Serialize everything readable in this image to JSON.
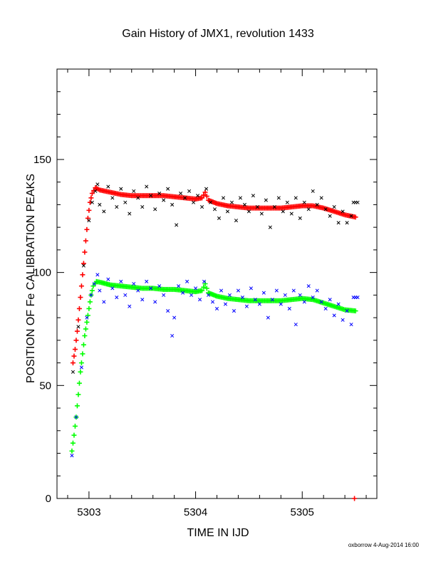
{
  "chart_data": {
    "type": "scatter",
    "title": "Gain History of JMX1, revolution 1433",
    "xlabel": "TIME IN IJD",
    "ylabel": "POSITION OF Fe CALIBRATION PEAKS",
    "footer": "oxborrow 4-Aug-2014 16:00",
    "xlim": [
      5302.7,
      5305.7
    ],
    "ylim": [
      0,
      190
    ],
    "x_ticks": [
      5303,
      5304,
      5305
    ],
    "x_tick_labels": [
      "5303",
      "5304",
      "5305"
    ],
    "y_ticks": [
      0,
      50,
      100,
      150
    ],
    "y_tick_labels": [
      "0",
      "50",
      "100",
      "150"
    ],
    "grid": false,
    "legend": "none",
    "series": [
      {
        "color": "#ff0000",
        "marker": "+",
        "points": [
          [
            5302.85,
            60
          ],
          [
            5302.87,
            66
          ],
          [
            5302.89,
            74
          ],
          [
            5302.91,
            84
          ],
          [
            5302.93,
            94
          ],
          [
            5302.95,
            104
          ],
          [
            5302.97,
            114
          ],
          [
            5302.99,
            124
          ],
          [
            5303.01,
            131
          ],
          [
            5303.03,
            135
          ],
          [
            5303.06,
            137.5
          ],
          [
            5303.1,
            136.5
          ],
          [
            5303.2,
            135.5
          ],
          [
            5303.3,
            134.5
          ],
          [
            5303.4,
            134
          ],
          [
            5303.5,
            134
          ],
          [
            5303.6,
            134
          ],
          [
            5303.7,
            134
          ],
          [
            5303.8,
            133.5
          ],
          [
            5303.9,
            133
          ],
          [
            5304.0,
            132.5
          ],
          [
            5304.06,
            133
          ],
          [
            5304.09,
            135.5
          ],
          [
            5304.12,
            132
          ],
          [
            5304.2,
            130.5
          ],
          [
            5304.3,
            129.5
          ],
          [
            5304.4,
            129
          ],
          [
            5304.5,
            128.5
          ],
          [
            5304.6,
            128.5
          ],
          [
            5304.7,
            128.5
          ],
          [
            5304.8,
            128.5
          ],
          [
            5304.9,
            129
          ],
          [
            5305.0,
            129.5
          ],
          [
            5305.1,
            129.5
          ],
          [
            5305.2,
            128.5
          ],
          [
            5305.3,
            127
          ],
          [
            5305.4,
            125.5
          ],
          [
            5305.5,
            124.5
          ]
        ]
      },
      {
        "color": "#00ff00",
        "marker": "+",
        "points": [
          [
            5302.84,
            21
          ],
          [
            5302.86,
            28
          ],
          [
            5302.88,
            36
          ],
          [
            5302.9,
            46
          ],
          [
            5302.92,
            56
          ],
          [
            5302.94,
            64
          ],
          [
            5302.96,
            72
          ],
          [
            5302.98,
            78
          ],
          [
            5303.0,
            84
          ],
          [
            5303.02,
            90
          ],
          [
            5303.04,
            94
          ],
          [
            5303.07,
            96
          ],
          [
            5303.12,
            95.5
          ],
          [
            5303.2,
            94.5
          ],
          [
            5303.3,
            94
          ],
          [
            5303.4,
            93.5
          ],
          [
            5303.5,
            93
          ],
          [
            5303.6,
            93
          ],
          [
            5303.7,
            92.5
          ],
          [
            5303.8,
            92.5
          ],
          [
            5303.9,
            92
          ],
          [
            5304.0,
            91.5
          ],
          [
            5304.06,
            92
          ],
          [
            5304.09,
            95
          ],
          [
            5304.12,
            91
          ],
          [
            5304.2,
            89.5
          ],
          [
            5304.3,
            88.5
          ],
          [
            5304.4,
            88
          ],
          [
            5304.5,
            87.5
          ],
          [
            5304.6,
            87.5
          ],
          [
            5304.7,
            87.5
          ],
          [
            5304.8,
            87.5
          ],
          [
            5304.9,
            88
          ],
          [
            5305.0,
            88.5
          ],
          [
            5305.1,
            88
          ],
          [
            5305.2,
            86.5
          ],
          [
            5305.3,
            85
          ],
          [
            5305.4,
            83.5
          ],
          [
            5305.5,
            83
          ]
        ]
      },
      {
        "color": "#000000",
        "marker": "x",
        "points": [
          [
            5302.85,
            56
          ],
          [
            5302.9,
            76
          ],
          [
            5302.95,
            103
          ],
          [
            5303.0,
            123
          ],
          [
            5303.03,
            131
          ],
          [
            5303.06,
            136
          ],
          [
            5303.08,
            139
          ],
          [
            5303.1,
            130
          ],
          [
            5303.14,
            127
          ],
          [
            5303.18,
            138
          ],
          [
            5303.22,
            133
          ],
          [
            5303.26,
            129
          ],
          [
            5303.3,
            137
          ],
          [
            5303.34,
            131
          ],
          [
            5303.38,
            126
          ],
          [
            5303.42,
            136
          ],
          [
            5303.46,
            133
          ],
          [
            5303.5,
            129
          ],
          [
            5303.54,
            138
          ],
          [
            5303.58,
            134
          ],
          [
            5303.62,
            128
          ],
          [
            5303.66,
            135
          ],
          [
            5303.7,
            132
          ],
          [
            5303.74,
            137
          ],
          [
            5303.78,
            130
          ],
          [
            5303.82,
            121
          ],
          [
            5303.86,
            135
          ],
          [
            5303.9,
            133
          ],
          [
            5303.94,
            136
          ],
          [
            5303.98,
            131
          ],
          [
            5304.02,
            134
          ],
          [
            5304.06,
            129
          ],
          [
            5304.1,
            137
          ],
          [
            5304.14,
            131
          ],
          [
            5304.18,
            128
          ],
          [
            5304.22,
            124
          ],
          [
            5304.26,
            133
          ],
          [
            5304.3,
            127
          ],
          [
            5304.34,
            131
          ],
          [
            5304.38,
            123
          ],
          [
            5304.42,
            133
          ],
          [
            5304.46,
            130
          ],
          [
            5304.5,
            127
          ],
          [
            5304.54,
            134
          ],
          [
            5304.58,
            129
          ],
          [
            5304.62,
            126
          ],
          [
            5304.66,
            132
          ],
          [
            5304.7,
            120
          ],
          [
            5304.74,
            129
          ],
          [
            5304.78,
            133
          ],
          [
            5304.82,
            127
          ],
          [
            5304.86,
            131
          ],
          [
            5304.9,
            126
          ],
          [
            5304.94,
            133
          ],
          [
            5304.98,
            124
          ],
          [
            5305.02,
            131
          ],
          [
            5305.06,
            128
          ],
          [
            5305.1,
            136
          ],
          [
            5305.14,
            130
          ],
          [
            5305.18,
            133
          ],
          [
            5305.22,
            128
          ],
          [
            5305.26,
            125
          ],
          [
            5305.3,
            129
          ],
          [
            5305.34,
            122
          ],
          [
            5305.38,
            127
          ],
          [
            5305.42,
            122
          ],
          [
            5305.46,
            125
          ],
          [
            5305.48,
            131
          ],
          [
            5305.5,
            131
          ],
          [
            5305.52,
            131
          ]
        ]
      },
      {
        "color": "#0000ff",
        "marker": "x",
        "points": [
          [
            5302.84,
            19
          ],
          [
            5302.88,
            36
          ],
          [
            5302.93,
            58
          ],
          [
            5302.98,
            80
          ],
          [
            5303.02,
            90
          ],
          [
            5303.05,
            95
          ],
          [
            5303.08,
            99
          ],
          [
            5303.1,
            92
          ],
          [
            5303.14,
            87
          ],
          [
            5303.18,
            97
          ],
          [
            5303.22,
            93
          ],
          [
            5303.26,
            89
          ],
          [
            5303.3,
            96
          ],
          [
            5303.34,
            90
          ],
          [
            5303.38,
            85
          ],
          [
            5303.42,
            95
          ],
          [
            5303.46,
            92
          ],
          [
            5303.5,
            88
          ],
          [
            5303.54,
            96
          ],
          [
            5303.58,
            93
          ],
          [
            5303.62,
            87
          ],
          [
            5303.66,
            94
          ],
          [
            5303.7,
            90
          ],
          [
            5303.74,
            83
          ],
          [
            5303.78,
            72
          ],
          [
            5303.8,
            80
          ],
          [
            5303.84,
            94
          ],
          [
            5303.88,
            91
          ],
          [
            5303.92,
            96
          ],
          [
            5303.96,
            90
          ],
          [
            5304.0,
            93
          ],
          [
            5304.04,
            88
          ],
          [
            5304.08,
            96
          ],
          [
            5304.12,
            90
          ],
          [
            5304.16,
            87
          ],
          [
            5304.2,
            84
          ],
          [
            5304.24,
            92
          ],
          [
            5304.28,
            86
          ],
          [
            5304.32,
            90
          ],
          [
            5304.36,
            83
          ],
          [
            5304.4,
            92
          ],
          [
            5304.44,
            89
          ],
          [
            5304.48,
            85
          ],
          [
            5304.52,
            93
          ],
          [
            5304.56,
            88
          ],
          [
            5304.6,
            86
          ],
          [
            5304.64,
            91
          ],
          [
            5304.68,
            80
          ],
          [
            5304.72,
            88
          ],
          [
            5304.76,
            92
          ],
          [
            5304.8,
            86
          ],
          [
            5304.84,
            90
          ],
          [
            5304.88,
            84
          ],
          [
            5304.92,
            92
          ],
          [
            5304.94,
            77
          ],
          [
            5304.98,
            90
          ],
          [
            5305.02,
            87
          ],
          [
            5305.06,
            94
          ],
          [
            5305.1,
            89
          ],
          [
            5305.14,
            92
          ],
          [
            5305.18,
            87
          ],
          [
            5305.22,
            84
          ],
          [
            5305.26,
            88
          ],
          [
            5305.3,
            81
          ],
          [
            5305.34,
            86
          ],
          [
            5305.38,
            79
          ],
          [
            5305.42,
            83
          ],
          [
            5305.46,
            77
          ],
          [
            5305.48,
            89
          ],
          [
            5305.5,
            89
          ],
          [
            5305.52,
            89
          ]
        ]
      }
    ],
    "extra_marks": [
      {
        "color": "#ff0000",
        "marker": "+",
        "x": 5305.49,
        "y": 0
      }
    ]
  }
}
